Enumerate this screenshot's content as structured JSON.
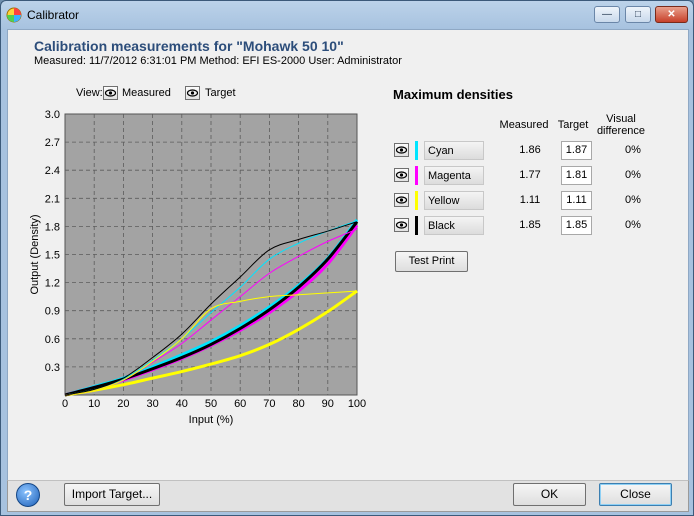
{
  "window": {
    "title": "Calibrator"
  },
  "header": {
    "heading": "Calibration measurements for \"Mohawk 50 10\"",
    "meta": "Measured: 11/7/2012 6:31:01 PM   Method: EFI ES-2000   User: Administrator"
  },
  "view": {
    "label": "View:",
    "measured_label": "Measured",
    "target_label": "Target"
  },
  "max_densities": {
    "title": "Maximum densities",
    "col_measured": "Measured",
    "col_target": "Target",
    "col_visual_1": "Visual",
    "col_visual_2": "difference",
    "rows": [
      {
        "name": "Cyan",
        "color": "#00e5ff",
        "measured": "1.86",
        "target": "1.87",
        "diff": "0%"
      },
      {
        "name": "Magenta",
        "color": "#ff00ff",
        "measured": "1.77",
        "target": "1.81",
        "diff": "0%"
      },
      {
        "name": "Yellow",
        "color": "#ffff00",
        "measured": "1.11",
        "target": "1.11",
        "diff": "0%"
      },
      {
        "name": "Black",
        "color": "#000000",
        "measured": "1.85",
        "target": "1.85",
        "diff": "0%"
      }
    ]
  },
  "buttons": {
    "test_print": "Test Print",
    "import_target": "Import Target...",
    "ok": "OK",
    "close": "Close",
    "help": "?"
  },
  "chart_data": {
    "type": "line",
    "xlabel": "Input (%)",
    "ylabel": "Output (Density)",
    "xlim": [
      0,
      100
    ],
    "ylim": [
      0,
      3.0
    ],
    "x_ticks": [
      "0",
      "10",
      "20",
      "30",
      "40",
      "50",
      "60",
      "70",
      "80",
      "90",
      "100"
    ],
    "y_ticks": [
      "0.3",
      "0.6",
      "0.9",
      "1.2",
      "1.5",
      "1.8",
      "2.1",
      "2.4",
      "2.7",
      "3.0"
    ],
    "grid": true,
    "x": [
      0,
      10,
      20,
      30,
      40,
      50,
      60,
      70,
      80,
      90,
      100
    ],
    "series": [
      {
        "name": "Cyan",
        "kind": "target",
        "color": "#00e5ff",
        "values": [
          0,
          0.09,
          0.18,
          0.3,
          0.43,
          0.57,
          0.74,
          0.94,
          1.17,
          1.46,
          1.87
        ]
      },
      {
        "name": "Magenta",
        "kind": "target",
        "color": "#ff00ff",
        "values": [
          0,
          0.08,
          0.16,
          0.27,
          0.39,
          0.53,
          0.69,
          0.88,
          1.11,
          1.4,
          1.81
        ]
      },
      {
        "name": "Yellow",
        "kind": "target",
        "color": "#ffff00",
        "values": [
          0,
          0.05,
          0.11,
          0.18,
          0.25,
          0.33,
          0.42,
          0.54,
          0.7,
          0.89,
          1.11
        ]
      },
      {
        "name": "Black",
        "kind": "target",
        "color": "#000000",
        "values": [
          0,
          0.08,
          0.17,
          0.28,
          0.4,
          0.54,
          0.71,
          0.91,
          1.15,
          1.45,
          1.85
        ]
      },
      {
        "name": "Cyan",
        "kind": "measured",
        "color": "#00e5ff",
        "values": [
          0,
          0.06,
          0.17,
          0.37,
          0.6,
          0.88,
          1.15,
          1.45,
          1.62,
          1.75,
          1.86
        ]
      },
      {
        "name": "Magenta",
        "kind": "measured",
        "color": "#ff00ff",
        "values": [
          0,
          0.05,
          0.16,
          0.35,
          0.55,
          0.8,
          1.05,
          1.3,
          1.48,
          1.64,
          1.77
        ]
      },
      {
        "name": "Yellow",
        "kind": "measured",
        "color": "#ffff00",
        "values": [
          0,
          0.05,
          0.16,
          0.36,
          0.6,
          0.92,
          1.0,
          1.05,
          1.07,
          1.09,
          1.11
        ]
      },
      {
        "name": "Black",
        "kind": "measured",
        "color": "#000000",
        "values": [
          0,
          0.06,
          0.18,
          0.4,
          0.65,
          0.97,
          1.26,
          1.55,
          1.66,
          1.75,
          1.85
        ]
      }
    ]
  }
}
